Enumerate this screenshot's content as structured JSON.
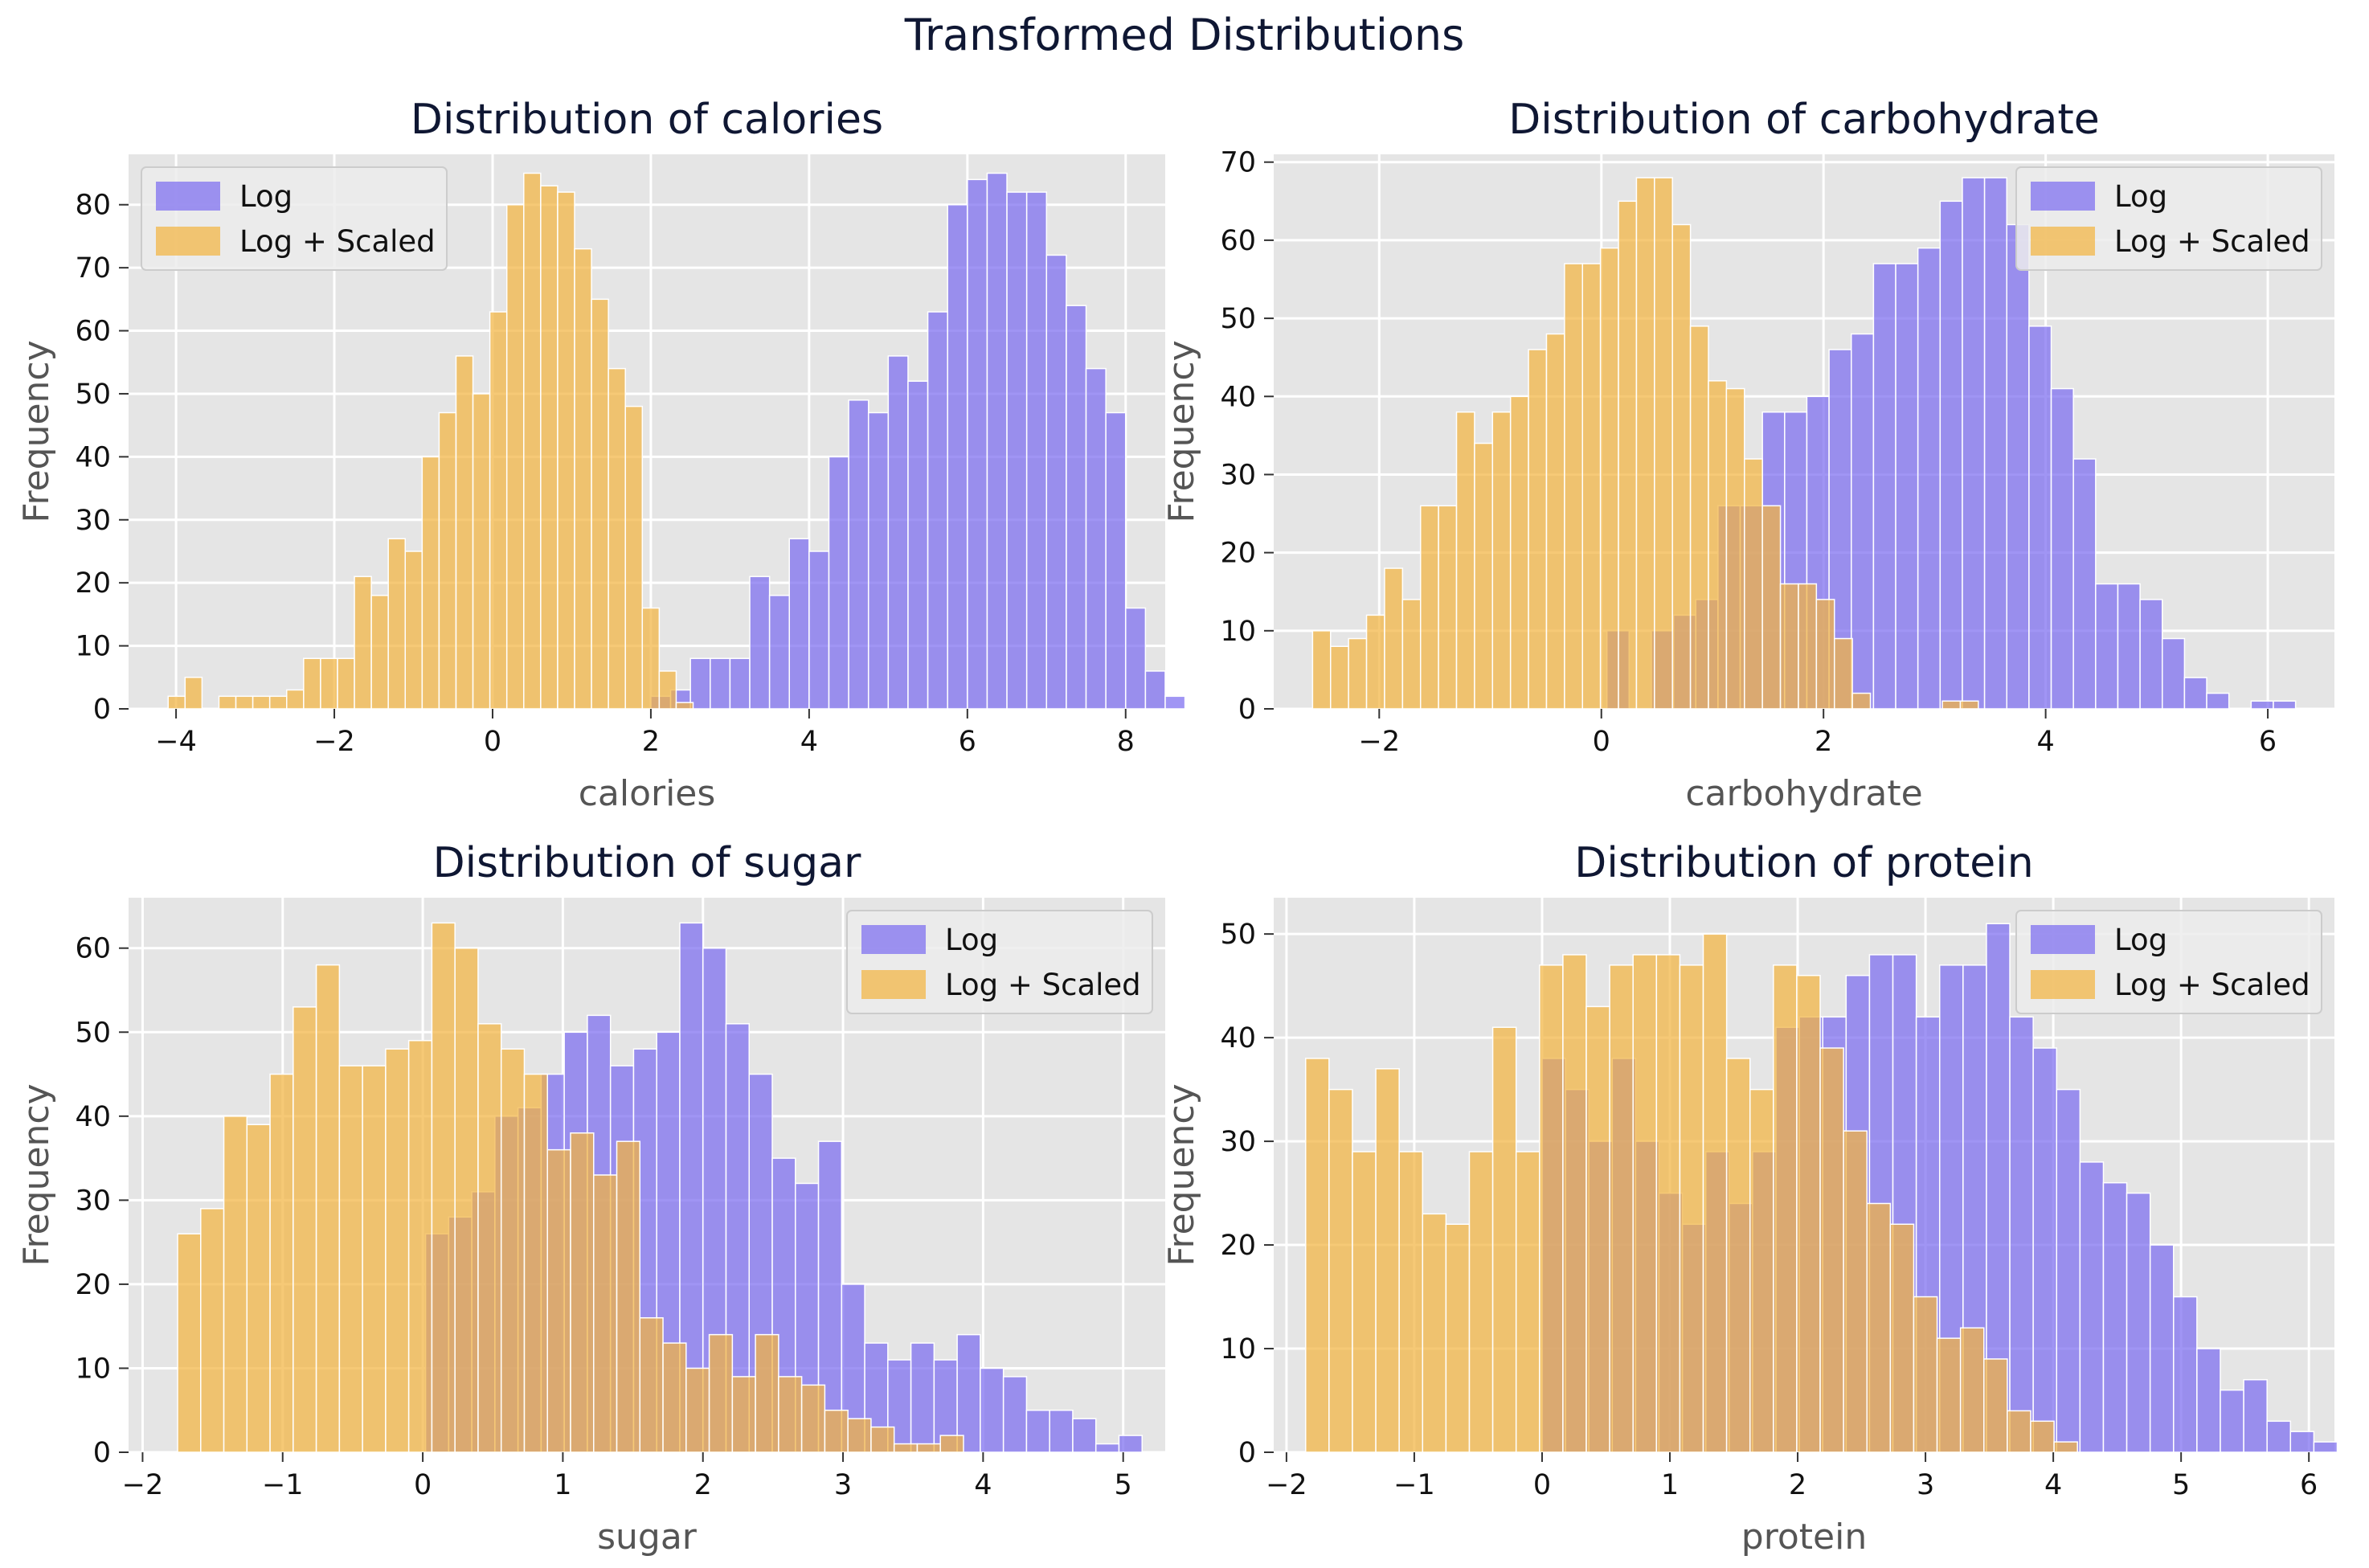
{
  "figure": {
    "title": "Transformed Distributions"
  },
  "colors": {
    "log": "#7b6cf0",
    "scaled": "#f2b441",
    "panel_bg": "#e5e5e5",
    "grid": "#ffffff",
    "text": "#0f1733"
  },
  "chart_data": [
    {
      "type": "bar",
      "title": "Distribution of calories",
      "xlabel": "calories",
      "ylabel": "Frequency",
      "xlim": [
        -4.6,
        8.5
      ],
      "ylim": [
        0,
        88
      ],
      "xticks": [
        -4,
        -2,
        0,
        2,
        4,
        6,
        8
      ],
      "yticks": [
        0,
        10,
        20,
        30,
        40,
        50,
        60,
        70,
        80
      ],
      "legend": "top-left",
      "series": [
        {
          "name": "Log",
          "bin_start": 2.0,
          "bin_width": 0.25,
          "counts": [
            2,
            3,
            8,
            8,
            8,
            21,
            18,
            27,
            25,
            40,
            49,
            47,
            56,
            52,
            63,
            80,
            84,
            85,
            82,
            82,
            72,
            64,
            54,
            47,
            16,
            6,
            2
          ]
        },
        {
          "name": "Log + Scaled",
          "bin_start": -4.1,
          "bin_width": 0.214,
          "counts": [
            2,
            5,
            0,
            2,
            2,
            2,
            2,
            3,
            8,
            8,
            8,
            21,
            18,
            27,
            25,
            40,
            47,
            56,
            50,
            63,
            80,
            85,
            83,
            82,
            73,
            65,
            54,
            48,
            16,
            6,
            1
          ]
        }
      ]
    },
    {
      "type": "bar",
      "title": "Distribution of carbohydrate",
      "xlabel": "carbohydrate",
      "ylabel": "Frequency",
      "xlim": [
        -2.95,
        6.6
      ],
      "ylim": [
        0,
        71
      ],
      "xticks": [
        -2,
        0,
        2,
        4,
        6
      ],
      "yticks": [
        0,
        10,
        20,
        30,
        40,
        50,
        60,
        70
      ],
      "legend": "top-right",
      "series": [
        {
          "name": "Log",
          "bin_start": 0.05,
          "bin_width": 0.2,
          "counts": [
            10,
            0,
            10,
            12,
            14,
            26,
            26,
            38,
            38,
            40,
            46,
            48,
            57,
            57,
            59,
            65,
            68,
            68,
            62,
            49,
            41,
            32,
            16,
            16,
            14,
            9,
            4,
            2,
            0,
            1,
            1
          ]
        },
        {
          "name": "Log + Scaled",
          "bin_start": -2.6,
          "bin_width": 0.162,
          "counts": [
            10,
            8,
            9,
            12,
            18,
            14,
            26,
            26,
            38,
            34,
            38,
            40,
            46,
            48,
            57,
            57,
            59,
            65,
            68,
            68,
            62,
            49,
            42,
            41,
            32,
            26,
            16,
            16,
            14,
            9,
            2,
            0,
            0,
            0,
            0,
            1,
            1
          ]
        }
      ]
    },
    {
      "type": "bar",
      "title": "Distribution of sugar",
      "xlabel": "sugar",
      "ylabel": "Frequency",
      "xlim": [
        -2.1,
        5.3
      ],
      "ylim": [
        0,
        66
      ],
      "xticks": [
        -2,
        -1,
        0,
        1,
        2,
        3,
        4,
        5
      ],
      "yticks": [
        0,
        10,
        20,
        30,
        40,
        50,
        60
      ],
      "legend": "top-right",
      "series": [
        {
          "name": "Log",
          "bin_start": 0.02,
          "bin_width": 0.165,
          "counts": [
            26,
            28,
            31,
            40,
            41,
            45,
            50,
            52,
            46,
            48,
            50,
            63,
            60,
            51,
            45,
            35,
            32,
            37,
            20,
            13,
            11,
            13,
            11,
            14,
            10,
            9,
            5,
            5,
            4,
            1,
            2
          ]
        },
        {
          "name": "Log + Scaled",
          "bin_start": -1.75,
          "bin_width": 0.165,
          "counts": [
            26,
            29,
            40,
            39,
            45,
            53,
            58,
            46,
            46,
            48,
            49,
            63,
            60,
            51,
            48,
            45,
            36,
            38,
            33,
            37,
            16,
            13,
            10,
            14,
            9,
            14,
            9,
            8,
            5,
            4,
            3,
            1,
            1,
            2
          ]
        }
      ]
    },
    {
      "type": "bar",
      "title": "Distribution of protein",
      "xlabel": "protein",
      "ylabel": "Frequency",
      "xlim": [
        -2.1,
        6.2
      ],
      "ylim": [
        0,
        53.5
      ],
      "xticks": [
        -2,
        -1,
        0,
        1,
        2,
        3,
        4,
        5,
        6
      ],
      "yticks": [
        0,
        10,
        20,
        30,
        40,
        50
      ],
      "legend": "top-right",
      "series": [
        {
          "name": "Log",
          "bin_start": 0.0,
          "bin_width": 0.183,
          "counts": [
            38,
            35,
            30,
            38,
            30,
            25,
            22,
            29,
            24,
            29,
            41,
            42,
            42,
            46,
            48,
            48,
            42,
            47,
            47,
            51,
            42,
            39,
            35,
            28,
            26,
            25,
            20,
            15,
            10,
            6,
            7,
            3,
            2,
            1
          ]
        },
        {
          "name": "Log + Scaled",
          "bin_start": -1.85,
          "bin_width": 0.183,
          "counts": [
            38,
            35,
            29,
            37,
            29,
            23,
            22,
            29,
            41,
            29,
            47,
            48,
            43,
            47,
            48,
            48,
            47,
            50,
            38,
            35,
            47,
            46,
            39,
            31,
            24,
            22,
            15,
            11,
            12,
            9,
            4,
            3,
            1
          ]
        }
      ]
    }
  ]
}
